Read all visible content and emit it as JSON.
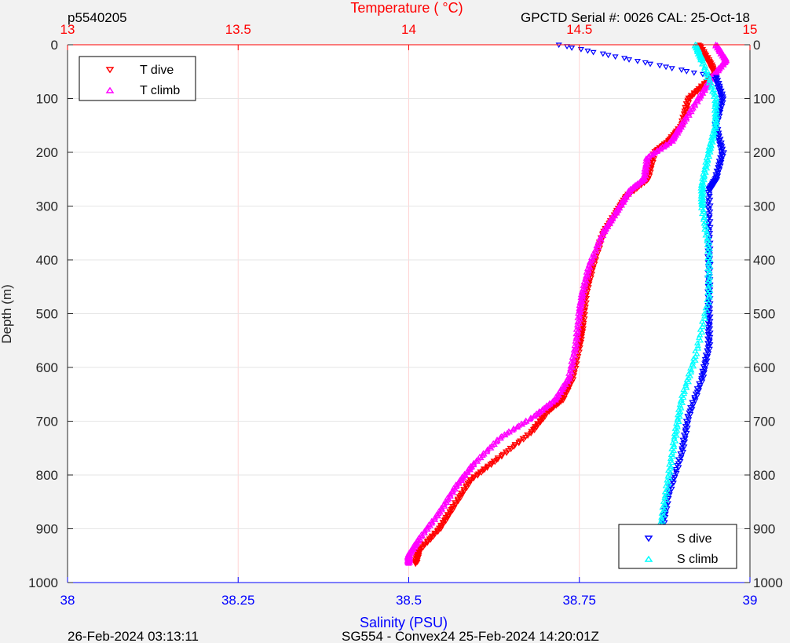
{
  "header": {
    "left": "p5540205",
    "right": "GPCTD Serial #: 0026 CAL: 25-Oct-18"
  },
  "footer": {
    "left": "26-Feb-2024 03:13:11",
    "center": "SG554 - Convex24 25-Feb-2024 14:20:01Z"
  },
  "colors": {
    "temperature_axis": "#ff0000",
    "salinity_axis": "#0000ff",
    "t_dive": "#ff0000",
    "t_climb": "#ff00ff",
    "s_dive": "#0000ff",
    "s_climb": "#00ffff"
  },
  "chart_data": {
    "type": "scatter",
    "top_axis": {
      "label": "Temperature (    °C)",
      "range": [
        13,
        15
      ],
      "ticks": [
        "13",
        "13.5",
        "14",
        "14.5",
        "15"
      ]
    },
    "bottom_axis": {
      "label": "Salinity (PSU)",
      "range": [
        38,
        39
      ],
      "ticks": [
        "38",
        "38.25",
        "38.5",
        "38.75",
        "39"
      ]
    },
    "y_axis": {
      "label": "Depth (m)",
      "range": [
        0,
        1000
      ],
      "reversed": true,
      "ticks": [
        "0",
        "100",
        "200",
        "300",
        "400",
        "500",
        "600",
        "700",
        "800",
        "900",
        "1000"
      ]
    },
    "legend_top_left": [
      "T dive",
      "T climb"
    ],
    "legend_bottom_right": [
      "S dive",
      "S climb"
    ],
    "grid": true,
    "series": [
      {
        "name": "T dive",
        "axis": "temperature",
        "marker": "down-triangle",
        "x": [
          14.85,
          14.88,
          14.9,
          14.88,
          14.82,
          14.8,
          14.76,
          14.72,
          14.7,
          14.64,
          14.61,
          14.57,
          14.54,
          14.52,
          14.51,
          14.5,
          14.48,
          14.45,
          14.41,
          14.36,
          14.26,
          14.18,
          14.13,
          14.09,
          14.03,
          14.02
        ],
        "y": [
          0,
          30,
          55,
          65,
          100,
          150,
          180,
          200,
          250,
          280,
          310,
          350,
          410,
          460,
          520,
          560,
          620,
          660,
          680,
          720,
          770,
          810,
          860,
          900,
          940,
          965
        ]
      },
      {
        "name": "T climb",
        "axis": "temperature",
        "marker": "up-triangle",
        "x": [
          14.9,
          14.93,
          14.89,
          14.85,
          14.8,
          14.77,
          14.7,
          14.69,
          14.65,
          14.61,
          14.57,
          14.53,
          14.51,
          14.5,
          14.49,
          14.47,
          14.43,
          14.37,
          14.27,
          14.19,
          14.14,
          14.09,
          14.03,
          14.0,
          14.0
        ],
        "y": [
          0,
          30,
          60,
          100,
          150,
          180,
          210,
          250,
          270,
          310,
          350,
          410,
          460,
          500,
          560,
          620,
          660,
          690,
          730,
          780,
          820,
          870,
          920,
          950,
          965
        ]
      },
      {
        "name": "S dive",
        "axis": "salinity",
        "marker": "down-triangle",
        "x": [
          38.72,
          38.95,
          38.96,
          38.95,
          38.96,
          38.95,
          38.94,
          38.94,
          38.94,
          38.94,
          38.94,
          38.93,
          38.91,
          38.9,
          38.88,
          38.87,
          38.87
        ],
        "y": [
          0,
          60,
          100,
          150,
          200,
          250,
          270,
          350,
          430,
          500,
          560,
          620,
          690,
          760,
          840,
          910,
          965
        ]
      },
      {
        "name": "S climb",
        "axis": "salinity",
        "marker": "up-triangle",
        "x": [
          38.92,
          38.93,
          38.95,
          38.95,
          38.94,
          38.93,
          38.93,
          38.94,
          38.94,
          38.92,
          38.9,
          38.89,
          38.88,
          38.87,
          38.87
        ],
        "y": [
          0,
          30,
          100,
          150,
          200,
          260,
          300,
          380,
          470,
          580,
          660,
          730,
          810,
          890,
          965
        ]
      }
    ]
  }
}
